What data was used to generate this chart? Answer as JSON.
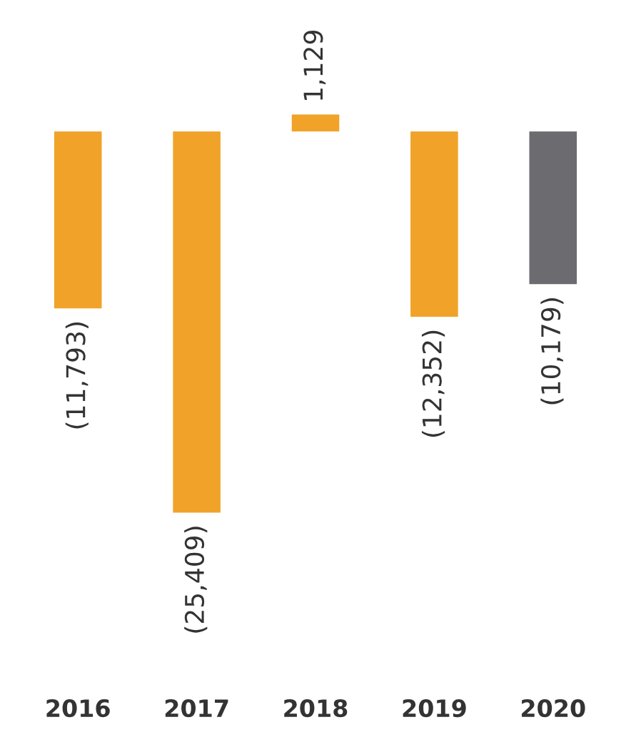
{
  "chart_data": {
    "type": "bar",
    "categories": [
      "2016",
      "2017",
      "2018",
      "2019",
      "2020"
    ],
    "values": [
      -11793,
      -25409,
      1129,
      -12352,
      -10179
    ],
    "colors": [
      "#f0a328",
      "#f0a328",
      "#f0a328",
      "#f0a328",
      "#6b6b70"
    ],
    "value_labels": [
      "(11,793)",
      "(25,409)",
      "1,129",
      "(12,352)",
      "(10,179)"
    ],
    "grid": false,
    "legend": false
  }
}
